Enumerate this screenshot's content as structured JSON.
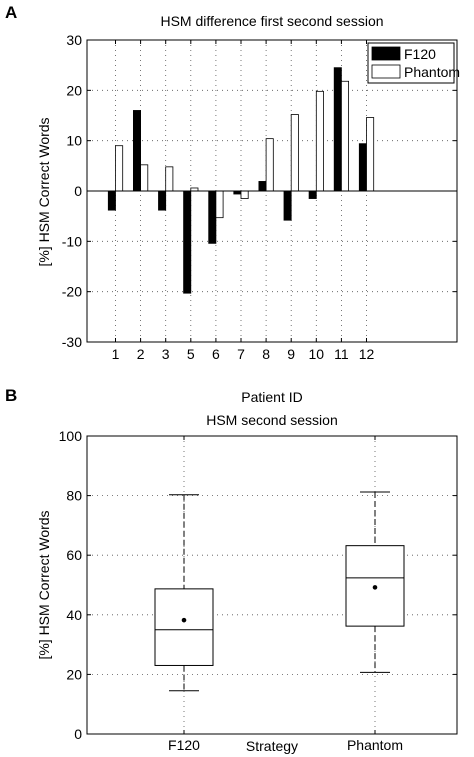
{
  "figure": {
    "panel_a_letter": "A",
    "panel_b_letter": "B"
  },
  "chart_data": [
    {
      "type": "bar",
      "title": "HSM difference first second session",
      "xlabel": "Patient ID",
      "ylabel": "[%] HSM Correct Words",
      "ylim": [
        -30,
        30
      ],
      "yticks": [
        -30,
        -20,
        -10,
        0,
        10,
        20,
        30
      ],
      "categories": [
        "1",
        "2",
        "3",
        "5",
        "6",
        "7",
        "8",
        "9",
        "10",
        "11",
        "12"
      ],
      "series": [
        {
          "name": "F120",
          "color": "#000000",
          "values": [
            -3.8,
            16,
            -3.8,
            -20.3,
            -10.4,
            -0.6,
            1.9,
            -5.8,
            -1.5,
            24.5,
            9.4
          ]
        },
        {
          "name": "Phantom",
          "color": "#ffffff",
          "values": [
            9,
            5.2,
            4.8,
            0.6,
            -5.3,
            -1.5,
            10.4,
            15.2,
            19.8,
            21.8,
            14.6
          ]
        }
      ],
      "legend": "top-right",
      "grid": true
    },
    {
      "type": "box",
      "title": "HSM second session",
      "xlabel": "Strategy",
      "ylabel": "[%] HSM Correct Words",
      "ylim": [
        0,
        100
      ],
      "yticks": [
        0,
        20,
        40,
        60,
        80,
        100
      ],
      "categories": [
        "F120",
        "Phantom"
      ],
      "boxes": [
        {
          "name": "F120",
          "whisker_low": 14.5,
          "q1": 23,
          "median": 35,
          "q3": 48.7,
          "whisker_high": 80.3,
          "mean": 38.2
        },
        {
          "name": "Phantom",
          "whisker_low": 20.7,
          "q1": 36.2,
          "median": 52.4,
          "q3": 63.2,
          "whisker_high": 81.2,
          "mean": 49.2
        }
      ],
      "grid": true
    }
  ]
}
